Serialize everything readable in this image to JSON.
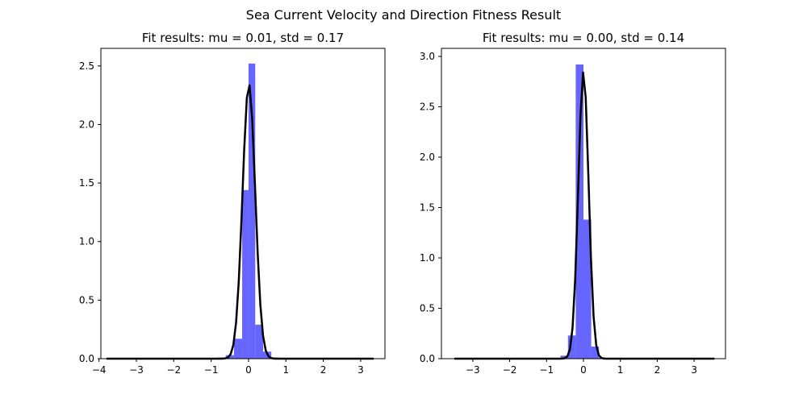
{
  "suptitle": "Sea Current Velocity and Direction Fitness Result",
  "colors": {
    "bars": "#6666ff",
    "fit_line": "#000000"
  },
  "chart_data": [
    {
      "type": "bar",
      "title": "Fit results: mu = 0.01,  std = 0.17",
      "xlabel": "",
      "ylabel": "",
      "xlim": [
        -3.95,
        3.65
      ],
      "ylim": [
        0,
        2.65
      ],
      "xticks": [
        -4,
        -3,
        -2,
        -1,
        0,
        1,
        2,
        3
      ],
      "yticks": [
        0.0,
        0.5,
        1.0,
        1.5,
        2.0,
        2.5
      ],
      "xtick_labels": [
        "−4",
        "−3",
        "−2",
        "−1",
        "0",
        "1",
        "2",
        "3"
      ],
      "ytick_labels": [
        "0.0",
        "0.5",
        "1.0",
        "1.5",
        "2.0",
        "2.5"
      ],
      "grid": false,
      "histogram": {
        "bin_edges": [
          -0.83,
          -0.61,
          -0.39,
          -0.17,
          0.0,
          0.18,
          0.39,
          0.61,
          0.83
        ],
        "values": [
          0.01,
          0.03,
          0.17,
          1.44,
          2.52,
          0.29,
          0.06,
          0.01
        ]
      },
      "fit_curve": {
        "mu": 0.01,
        "std": 0.17,
        "x_range": [
          -3.8,
          3.35
        ]
      }
    },
    {
      "type": "bar",
      "title": "Fit results: mu = 0.00,  std = 0.14",
      "xlabel": "",
      "ylabel": "",
      "xlim": [
        -3.85,
        3.85
      ],
      "ylim": [
        0,
        3.08
      ],
      "xticks": [
        -3,
        -2,
        -1,
        0,
        1,
        2,
        3
      ],
      "yticks": [
        0.0,
        0.5,
        1.0,
        1.5,
        2.0,
        2.5,
        3.0
      ],
      "xtick_labels": [
        "−3",
        "−2",
        "−1",
        "0",
        "1",
        "2",
        "3"
      ],
      "ytick_labels": [
        "0.0",
        "0.5",
        "1.0",
        "1.5",
        "2.0",
        "2.5",
        "3.0"
      ],
      "grid": false,
      "histogram": {
        "bin_edges": [
          -0.62,
          -0.42,
          -0.21,
          0.0,
          0.21,
          0.42,
          0.62
        ],
        "values": [
          0.03,
          0.23,
          2.92,
          1.38,
          0.12,
          0.01
        ]
      },
      "fit_curve": {
        "mu": 0.0,
        "std": 0.14,
        "x_range": [
          -3.5,
          3.55
        ]
      }
    }
  ]
}
